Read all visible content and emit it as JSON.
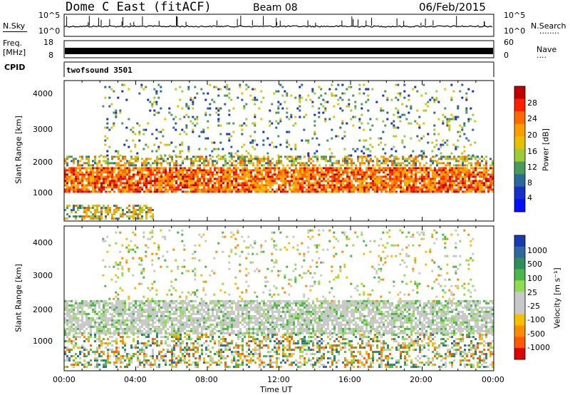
{
  "header": {
    "title": "Dome C East (fitACF)",
    "beam": "Beam 08",
    "date": "06/Feb/2015"
  },
  "top_panels": {
    "nsky_label": "N.Sky",
    "nsky_ticks": [
      "10^5",
      "10^0"
    ],
    "nsky_right_ticks": [
      "10^5",
      "10^0"
    ],
    "nsearch_label": "N.Search",
    "nsearch_dots": "........",
    "freq_label_line1": "Freq.",
    "freq_label_line2": "[MHz]",
    "freq_ticks": [
      "18",
      "8"
    ],
    "nave_label": "Nave",
    "nave_dots": "....",
    "nave_ticks": [
      "60",
      "0"
    ],
    "cpid_label": "CPID",
    "cpid_value": "twofsound 3501"
  },
  "chart_data": [
    {
      "type": "heatmap",
      "panel": "power",
      "ylabel": "Slant Range [km]",
      "yticks": [
        "4000",
        "3000",
        "2000",
        "1000"
      ],
      "ylim": [
        200,
        4500
      ],
      "xlim": [
        0,
        24
      ],
      "colorbar_label": "Power [dB]",
      "colorbar_ticks": [
        "28",
        "24",
        "20",
        "16",
        "12",
        "8",
        "4"
      ],
      "colors": [
        "#c00000",
        "#ff2000",
        "#ff6a00",
        "#ff9c00",
        "#e8c000",
        "#9ccc3c",
        "#4a9a5a",
        "#2a6a9a",
        "#1830c8",
        "#0010ff"
      ],
      "bands": [
        {
          "range_km": [
            1100,
            1850
          ],
          "level": "strong",
          "hours": [
            0,
            24
          ]
        },
        {
          "range_km": [
            1900,
            2200
          ],
          "level": "moderate",
          "hours": [
            0,
            24
          ]
        },
        {
          "range_km": [
            300,
            700
          ],
          "level": "moderate",
          "hours": [
            0,
            5
          ]
        },
        {
          "range_km": [
            2200,
            4400
          ],
          "level": "weak-sporadic",
          "hours": [
            2,
            23
          ]
        }
      ]
    },
    {
      "type": "heatmap",
      "panel": "velocity",
      "ylabel": "Slant Range [km]",
      "yticks": [
        "4000",
        "3000",
        "2000",
        "1000"
      ],
      "ylim": [
        200,
        4500
      ],
      "xlim": [
        0,
        24
      ],
      "xticks": [
        "00:00",
        "04:00",
        "08:00",
        "12:00",
        "16:00",
        "20:00",
        "00:00"
      ],
      "xlabel": "Time UT",
      "colorbar_label": "Velocity [m s⁻¹]",
      "colorbar_ticks": [
        "1000",
        "500",
        "100",
        "25",
        "-25",
        "-100",
        "-500",
        "-1000"
      ],
      "colors": [
        "#1a3ab0",
        "#2e6aa0",
        "#2f8f5a",
        "#4ab848",
        "#8fdc50",
        "#c8c8c8",
        "#c8c8c8",
        "#f4c000",
        "#ff8c00",
        "#ff5a00",
        "#e00000"
      ],
      "bands": [
        {
          "range_km": [
            1300,
            2300
          ],
          "level": "ground-scatter",
          "hours": [
            0,
            24
          ]
        },
        {
          "range_km": [
            300,
            1300
          ],
          "level": "mixed",
          "hours": [
            0,
            24
          ]
        },
        {
          "range_km": [
            2300,
            4400
          ],
          "level": "weak-sporadic",
          "hours": [
            2,
            23
          ]
        }
      ]
    }
  ]
}
